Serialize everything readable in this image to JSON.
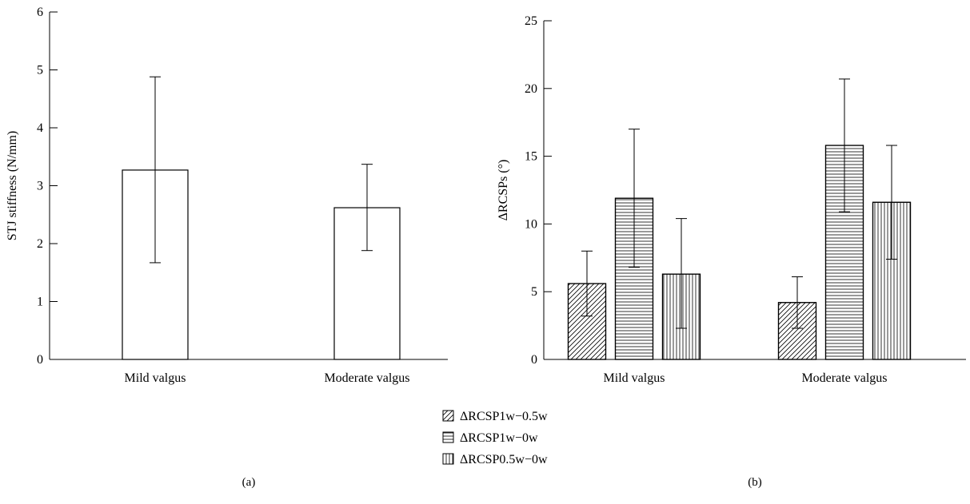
{
  "chart_data": [
    {
      "type": "bar",
      "panel_label": "(a)",
      "title": "",
      "xlabel": "",
      "ylabel": "STJ stiffness (N/mm)",
      "ylim": [
        0,
        6
      ],
      "yticks": [
        0,
        1,
        2,
        3,
        4,
        5,
        6
      ],
      "categories": [
        "Mild valgus",
        "Moderate valgus"
      ],
      "series": [
        {
          "values": [
            3.27,
            2.62
          ],
          "error_low": [
            1.67,
            1.88
          ],
          "error_high": [
            4.88,
            3.37
          ],
          "fill": "none"
        }
      ],
      "grid": false
    },
    {
      "type": "bar",
      "panel_label": "(b)",
      "title": "",
      "xlabel": "",
      "ylabel": "ΔRCSPs (°)",
      "ylim": [
        0,
        25
      ],
      "yticks": [
        0,
        5,
        10,
        15,
        20,
        25
      ],
      "categories": [
        "Mild valgus",
        "Moderate valgus"
      ],
      "series": [
        {
          "name": "ΔRCSP1w−0.5w",
          "pattern": "diagonal",
          "values": [
            5.6,
            4.2
          ],
          "error_low": [
            3.2,
            2.3
          ],
          "error_high": [
            8.0,
            6.1
          ]
        },
        {
          "name": "ΔRCSP1w−0w",
          "pattern": "horizontal",
          "values": [
            11.9,
            15.8
          ],
          "error_low": [
            6.8,
            10.9
          ],
          "error_high": [
            17.0,
            20.7
          ]
        },
        {
          "name": "ΔRCSP0.5w−0w",
          "pattern": "vertical",
          "values": [
            6.3,
            11.6
          ],
          "error_low": [
            2.3,
            7.4
          ],
          "error_high": [
            10.4,
            15.8
          ]
        }
      ],
      "legend_position": "bottom-left",
      "grid": false
    }
  ]
}
